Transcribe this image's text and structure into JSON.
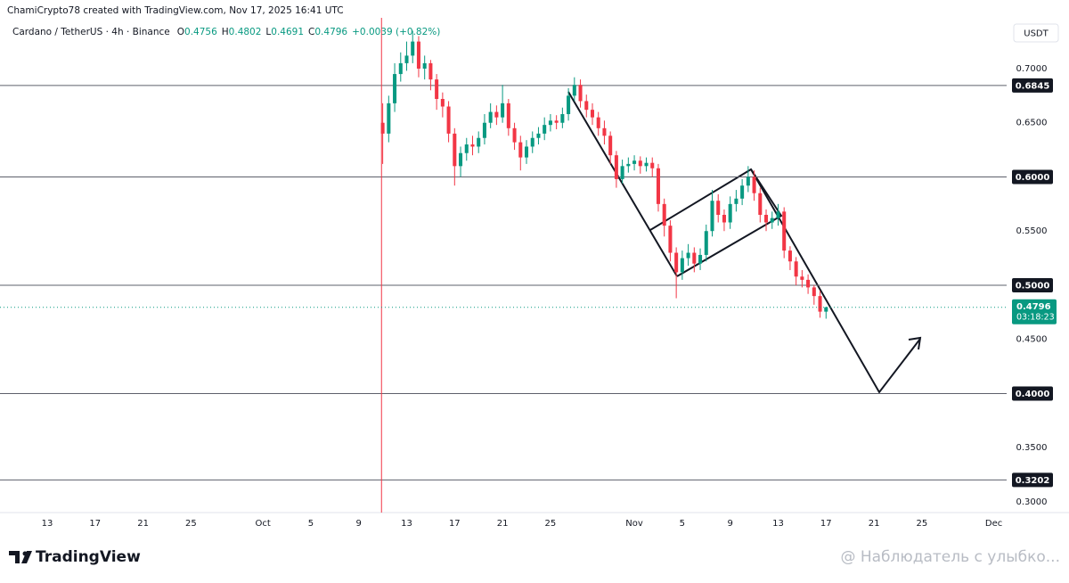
{
  "header": "ChamiCrypto78 created with TradingView.com, Nov 17, 2025 16:41 UTC",
  "chart_data": {
    "type": "candlestick",
    "symbol": "Cardano / TetherUS · 4h · Binance",
    "ohlc_prefixes": [
      "O",
      "H",
      "L",
      "C"
    ],
    "change": "+0.0039 (+0.82%)",
    "currency": "USDT",
    "countdown": "03:18:23",
    "x": [
      41,
      41.5,
      42,
      42.5,
      43,
      43.5,
      44,
      44.5,
      45,
      45.5,
      46,
      46.5,
      47,
      47.5,
      48,
      48.5,
      49,
      49.5,
      50,
      50.5,
      51,
      51.5,
      52,
      52.5,
      53,
      53.5,
      54,
      54.5,
      55,
      55.5,
      56,
      56.5,
      57,
      57.5,
      58,
      58.5,
      59,
      59.5,
      60,
      60.5,
      61,
      61.5,
      62,
      62.5,
      63,
      63.5,
      64,
      64.5,
      65,
      65.5,
      66,
      66.5,
      67,
      67.5,
      68,
      68.5,
      69,
      69.5,
      70,
      70.5,
      71,
      71.5,
      72,
      72.5,
      73,
      73.5,
      74,
      74.5,
      75,
      75.5,
      76,
      76.5,
      77,
      77.5,
      78
    ],
    "open": [
      0.65,
      0.64,
      0.668,
      0.695,
      0.705,
      0.712,
      0.725,
      0.7,
      0.705,
      0.69,
      0.672,
      0.665,
      0.64,
      0.61,
      0.622,
      0.63,
      0.628,
      0.636,
      0.65,
      0.66,
      0.655,
      0.668,
      0.645,
      0.632,
      0.618,
      0.628,
      0.636,
      0.64,
      0.648,
      0.652,
      0.65,
      0.658,
      0.675,
      0.685,
      0.67,
      0.662,
      0.655,
      0.645,
      0.638,
      0.62,
      0.598,
      0.61,
      0.612,
      0.615,
      0.61,
      0.613,
      0.608,
      0.575,
      0.555,
      0.53,
      0.512,
      0.525,
      0.53,
      0.52,
      0.528,
      0.55,
      0.578,
      0.565,
      0.558,
      0.575,
      0.58,
      0.592,
      0.6,
      0.585,
      0.565,
      0.558,
      0.562,
      0.568,
      0.532,
      0.522,
      0.508,
      0.505,
      0.498,
      0.49,
      0.4756
    ],
    "high": [
      0.668,
      0.675,
      0.705,
      0.715,
      0.725,
      0.735,
      0.73,
      0.712,
      0.708,
      0.695,
      0.678,
      0.67,
      0.645,
      0.628,
      0.636,
      0.638,
      0.642,
      0.658,
      0.668,
      0.666,
      0.685,
      0.672,
      0.65,
      0.638,
      0.634,
      0.642,
      0.646,
      0.655,
      0.658,
      0.657,
      0.664,
      0.682,
      0.692,
      0.69,
      0.676,
      0.668,
      0.66,
      0.652,
      0.642,
      0.624,
      0.616,
      0.618,
      0.62,
      0.619,
      0.618,
      0.618,
      0.612,
      0.58,
      0.56,
      0.535,
      0.532,
      0.538,
      0.535,
      0.534,
      0.556,
      0.588,
      0.584,
      0.57,
      0.582,
      0.588,
      0.598,
      0.61,
      0.606,
      0.59,
      0.57,
      0.568,
      0.575,
      0.572,
      0.536,
      0.526,
      0.514,
      0.51,
      0.5,
      0.495,
      0.4802
    ],
    "low": [
      0.612,
      0.632,
      0.66,
      0.688,
      0.698,
      0.705,
      0.692,
      0.69,
      0.68,
      0.662,
      0.655,
      0.632,
      0.592,
      0.6,
      0.615,
      0.62,
      0.622,
      0.63,
      0.645,
      0.648,
      0.65,
      0.638,
      0.625,
      0.606,
      0.612,
      0.622,
      0.63,
      0.634,
      0.642,
      0.644,
      0.645,
      0.652,
      0.67,
      0.664,
      0.655,
      0.648,
      0.638,
      0.63,
      0.612,
      0.59,
      0.594,
      0.604,
      0.606,
      0.603,
      0.605,
      0.6,
      0.568,
      0.545,
      0.522,
      0.488,
      0.505,
      0.518,
      0.512,
      0.514,
      0.522,
      0.545,
      0.558,
      0.55,
      0.552,
      0.568,
      0.574,
      0.586,
      0.578,
      0.558,
      0.55,
      0.552,
      0.555,
      0.525,
      0.514,
      0.5,
      0.498,
      0.492,
      0.482,
      0.47,
      0.4691
    ],
    "close": [
      0.64,
      0.668,
      0.695,
      0.705,
      0.712,
      0.725,
      0.7,
      0.705,
      0.69,
      0.672,
      0.665,
      0.64,
      0.61,
      0.622,
      0.63,
      0.628,
      0.636,
      0.65,
      0.66,
      0.655,
      0.668,
      0.645,
      0.632,
      0.618,
      0.628,
      0.636,
      0.64,
      0.648,
      0.652,
      0.65,
      0.658,
      0.675,
      0.685,
      0.67,
      0.662,
      0.655,
      0.645,
      0.638,
      0.62,
      0.598,
      0.61,
      0.612,
      0.615,
      0.61,
      0.613,
      0.608,
      0.575,
      0.555,
      0.53,
      0.512,
      0.525,
      0.53,
      0.52,
      0.528,
      0.55,
      0.578,
      0.565,
      0.558,
      0.575,
      0.58,
      0.592,
      0.6,
      0.585,
      0.565,
      0.558,
      0.562,
      0.568,
      0.532,
      0.522,
      0.508,
      0.505,
      0.498,
      0.49,
      0.4756,
      0.4796
    ],
    "up_color": "#089981",
    "down_color": "#f23645",
    "xlim": [
      9.06,
      92.18
    ],
    "ylim": [
      0.2901,
      0.7469
    ],
    "xticks": [
      13,
      17,
      21,
      25,
      {
        "value": 31,
        "label": "Oct"
      },
      {
        "value": 35,
        "label": "5"
      },
      {
        "value": 39,
        "label": "9"
      },
      {
        "value": 43,
        "label": "13"
      },
      {
        "value": 47,
        "label": "17"
      },
      {
        "value": 51,
        "label": "21"
      },
      {
        "value": 55,
        "label": "25"
      },
      {
        "value": 62,
        "label": "Nov"
      },
      {
        "value": 66,
        "label": "5"
      },
      {
        "value": 70,
        "label": "9"
      },
      {
        "value": 74,
        "label": "13"
      },
      {
        "value": 78,
        "label": "17"
      },
      {
        "value": 82,
        "label": "21"
      },
      {
        "value": 86,
        "label": "25"
      },
      {
        "value": 92,
        "label": "Dec"
      }
    ],
    "yticks": [
      {
        "value": 0.7,
        "label": "0.7000"
      },
      {
        "value": 0.65,
        "label": "0.6500"
      },
      {
        "value": 0.55,
        "label": "0.5500"
      },
      {
        "value": 0.45,
        "label": "0.4500"
      },
      {
        "value": 0.35,
        "label": "0.3500"
      },
      {
        "value": 0.3,
        "label": "0.3000"
      }
    ],
    "levels": [
      0.6845,
      {
        "value": 0.6,
        "label": "0.6000"
      },
      {
        "value": 0.5,
        "label": "0.5000"
      },
      {
        "value": 0.4,
        "label": "0.4000"
      },
      0.3202
    ],
    "vline_x": 40.9,
    "vline_color": "#f23645"
  },
  "logo": "TradingView",
  "watermark": "@ Наблюдатель с улыбко..."
}
